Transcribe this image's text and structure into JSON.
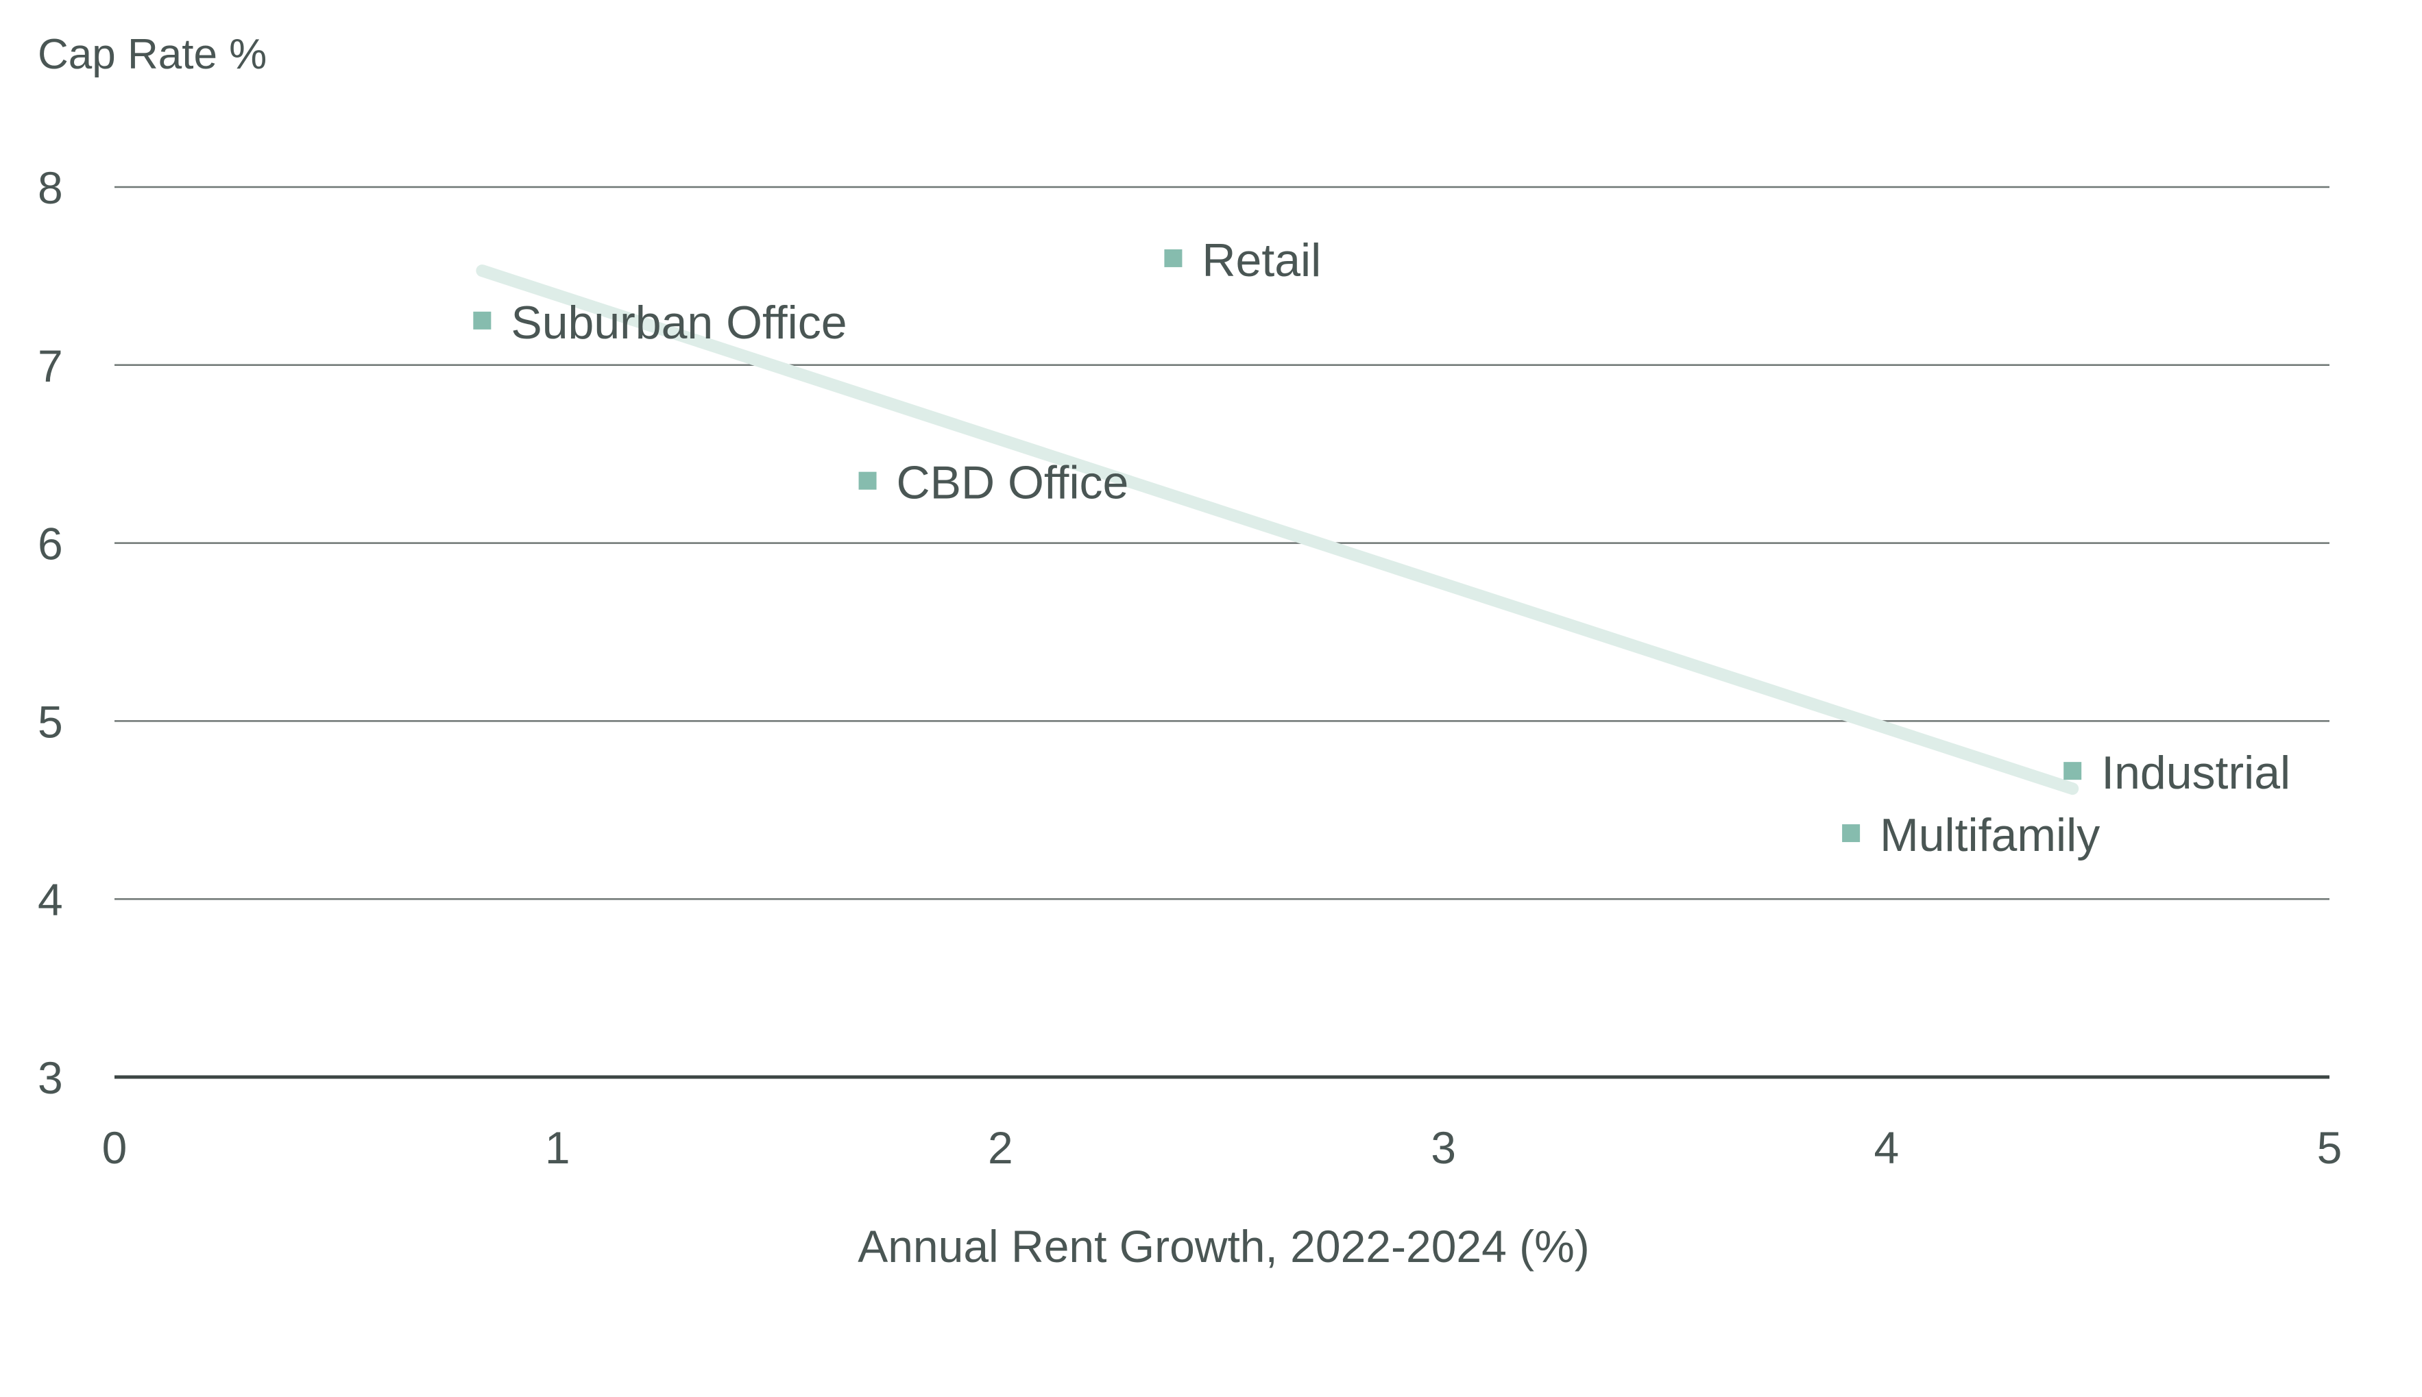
{
  "chart_data": {
    "type": "scatter",
    "title": "",
    "xlabel": "Annual Rent Growth, 2022-2024 (%)",
    "ylabel": "Cap Rate %",
    "xlim": [
      0,
      5
    ],
    "ylim": [
      3,
      8
    ],
    "xticks": [
      0,
      1,
      2,
      3,
      4,
      5
    ],
    "yticks": [
      3,
      4,
      5,
      6,
      7,
      8
    ],
    "grid": true,
    "legend": "none",
    "points": [
      {
        "label": "Suburban Office",
        "x": 0.83,
        "y": 7.25
      },
      {
        "label": "Retail",
        "x": 2.39,
        "y": 7.6
      },
      {
        "label": "CBD Office",
        "x": 1.7,
        "y": 6.35
      },
      {
        "label": "Industrial",
        "x": 4.42,
        "y": 4.72
      },
      {
        "label": "Multifamily",
        "x": 3.92,
        "y": 4.37
      }
    ],
    "trendline": {
      "x": [
        0.83,
        4.42
      ],
      "y": [
        7.53,
        4.62
      ]
    },
    "colors": {
      "marker": "#86bcae",
      "trendline": "#deede8",
      "grid": "#6f7775",
      "baseline": "#3c4644",
      "text": "#4a5654"
    }
  }
}
